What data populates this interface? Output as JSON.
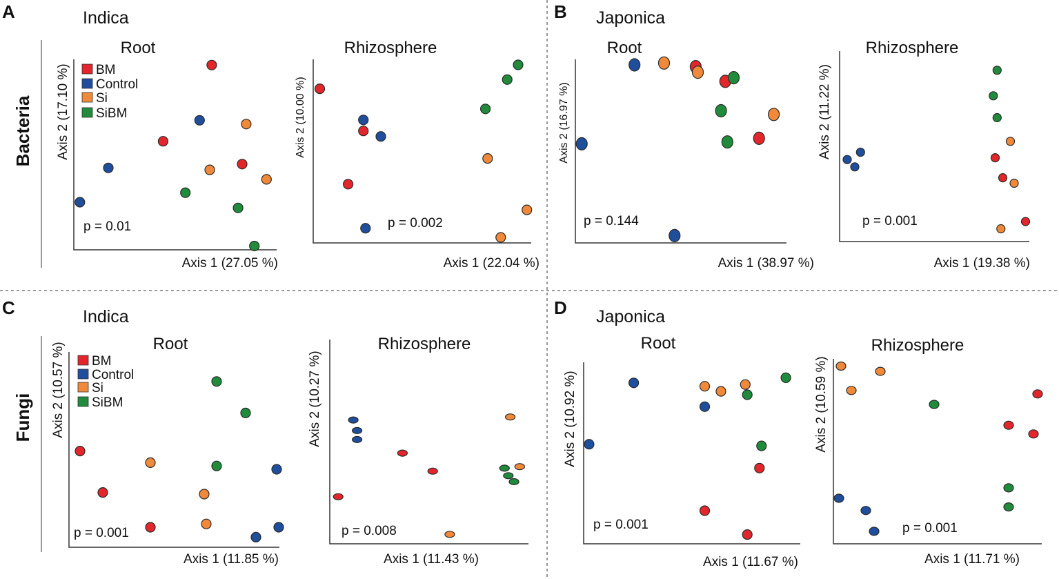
{
  "figure": {
    "row_labels": [
      "Bacteria",
      "Fungi"
    ],
    "colors": {
      "BM": "#e3262b",
      "Control": "#1f4e9c",
      "Si": "#f0893a",
      "SiBM": "#1f8b3b"
    }
  },
  "panels": [
    {
      "letter": "A",
      "group": "Indica"
    },
    {
      "letter": "B",
      "group": "Japonica"
    },
    {
      "letter": "C",
      "group": "Indica"
    },
    {
      "letter": "D",
      "group": "Japonica"
    }
  ],
  "chart_data": [
    {
      "type": "scatter",
      "panel": "A",
      "group": "Indica",
      "kingdom": "Bacteria",
      "title": "Root",
      "xlabel": "Axis 1 (27.05 %)",
      "ylabel": "Axis 2 (17.10 %)",
      "p_value": "p = 0.01",
      "xlim": [
        0,
        100
      ],
      "ylim": [
        0,
        100
      ],
      "legend": [
        "BM",
        "Control",
        "Si",
        "SiBM"
      ],
      "points": [
        {
          "group": "BM",
          "x": 68,
          "y": 97
        },
        {
          "group": "BM",
          "x": 44,
          "y": 57
        },
        {
          "group": "BM",
          "x": 83,
          "y": 45
        },
        {
          "group": "Control",
          "x": 62,
          "y": 68
        },
        {
          "group": "Control",
          "x": 17,
          "y": 43
        },
        {
          "group": "Control",
          "x": 3,
          "y": 25
        },
        {
          "group": "Si",
          "x": 85,
          "y": 66
        },
        {
          "group": "Si",
          "x": 67,
          "y": 42
        },
        {
          "group": "Si",
          "x": 95,
          "y": 37
        },
        {
          "group": "SiBM",
          "x": 55,
          "y": 30
        },
        {
          "group": "SiBM",
          "x": 81,
          "y": 22
        },
        {
          "group": "SiBM",
          "x": 89,
          "y": 2
        }
      ]
    },
    {
      "type": "scatter",
      "panel": "A",
      "group": "Indica",
      "kingdom": "Bacteria",
      "title": "Rhizosphere",
      "xlabel": "Axis 1 (22.04 %)",
      "ylabel": "Axis 2 (10.00 %)",
      "p_value": "p = 0.002",
      "xlim": [
        0,
        100
      ],
      "ylim": [
        0,
        100
      ],
      "points": [
        {
          "group": "BM",
          "x": 3,
          "y": 84
        },
        {
          "group": "BM",
          "x": 23,
          "y": 61
        },
        {
          "group": "BM",
          "x": 16,
          "y": 32
        },
        {
          "group": "Control",
          "x": 23,
          "y": 67
        },
        {
          "group": "Control",
          "x": 31,
          "y": 58
        },
        {
          "group": "Control",
          "x": 24,
          "y": 8
        },
        {
          "group": "Si",
          "x": 80,
          "y": 46
        },
        {
          "group": "Si",
          "x": 98,
          "y": 18
        },
        {
          "group": "Si",
          "x": 86,
          "y": 3
        },
        {
          "group": "SiBM",
          "x": 94,
          "y": 97
        },
        {
          "group": "SiBM",
          "x": 89,
          "y": 89
        },
        {
          "group": "SiBM",
          "x": 79,
          "y": 73
        }
      ]
    },
    {
      "type": "scatter",
      "panel": "B",
      "group": "Japonica",
      "kingdom": "Bacteria",
      "title": "Root",
      "xlabel": "Axis 1 (38.97 %)",
      "ylabel": "Axis 2 (16.97 %)",
      "p_value": "p = 0.144",
      "xlim": [
        0,
        100
      ],
      "ylim": [
        0,
        100
      ],
      "points": [
        {
          "group": "BM",
          "x": 57,
          "y": 96
        },
        {
          "group": "BM",
          "x": 71,
          "y": 88
        },
        {
          "group": "BM",
          "x": 87,
          "y": 57
        },
        {
          "group": "Control",
          "x": 28,
          "y": 97
        },
        {
          "group": "Control",
          "x": 3,
          "y": 54
        },
        {
          "group": "Control",
          "x": 47,
          "y": 4
        },
        {
          "group": "Si",
          "x": 42,
          "y": 98
        },
        {
          "group": "Si",
          "x": 58,
          "y": 93
        },
        {
          "group": "Si",
          "x": 94,
          "y": 70
        },
        {
          "group": "SiBM",
          "x": 75,
          "y": 90
        },
        {
          "group": "SiBM",
          "x": 69,
          "y": 72
        },
        {
          "group": "SiBM",
          "x": 72,
          "y": 55
        }
      ]
    },
    {
      "type": "scatter",
      "panel": "B",
      "group": "Japonica",
      "kingdom": "Bacteria",
      "title": "Rhizosphere",
      "xlabel": "Axis 1 (19.38 %)",
      "ylabel": "Axis 2 (11.22 %)",
      "p_value": "p = 0.001",
      "xlim": [
        0,
        100
      ],
      "ylim": [
        0,
        100
      ],
      "points": [
        {
          "group": "BM",
          "x": 82,
          "y": 46
        },
        {
          "group": "BM",
          "x": 86,
          "y": 35
        },
        {
          "group": "BM",
          "x": 98,
          "y": 11
        },
        {
          "group": "Control",
          "x": 4,
          "y": 45
        },
        {
          "group": "Control",
          "x": 8,
          "y": 41
        },
        {
          "group": "Control",
          "x": 11,
          "y": 49
        },
        {
          "group": "Si",
          "x": 90,
          "y": 55
        },
        {
          "group": "Si",
          "x": 92,
          "y": 32
        },
        {
          "group": "Si",
          "x": 85,
          "y": 7
        },
        {
          "group": "SiBM",
          "x": 83,
          "y": 94
        },
        {
          "group": "SiBM",
          "x": 81,
          "y": 80
        },
        {
          "group": "SiBM",
          "x": 83,
          "y": 68
        }
      ]
    },
    {
      "type": "scatter",
      "panel": "C",
      "group": "Indica",
      "kingdom": "Fungi",
      "title": "Root",
      "xlabel": "Axis 1 (11.85 %)",
      "ylabel": "Axis 2 (10.57 %)",
      "p_value": "p = 0.001",
      "xlim": [
        0,
        100
      ],
      "ylim": [
        0,
        100
      ],
      "legend": [
        "BM",
        "Control",
        "Si",
        "SiBM"
      ],
      "points": [
        {
          "group": "BM",
          "x": 3,
          "y": 56
        },
        {
          "group": "BM",
          "x": 14,
          "y": 31
        },
        {
          "group": "BM",
          "x": 37,
          "y": 10
        },
        {
          "group": "Control",
          "x": 98,
          "y": 45
        },
        {
          "group": "Control",
          "x": 99,
          "y": 10
        },
        {
          "group": "Control",
          "x": 88,
          "y": 4
        },
        {
          "group": "Si",
          "x": 37,
          "y": 49
        },
        {
          "group": "Si",
          "x": 63,
          "y": 30
        },
        {
          "group": "Si",
          "x": 64,
          "y": 12
        },
        {
          "group": "SiBM",
          "x": 69,
          "y": 98
        },
        {
          "group": "SiBM",
          "x": 83,
          "y": 79
        },
        {
          "group": "SiBM",
          "x": 69,
          "y": 47
        }
      ]
    },
    {
      "type": "scatter",
      "panel": "C",
      "group": "Indica",
      "kingdom": "Fungi",
      "title": "Rhizosphere",
      "xlabel": "Axis 1 (11.43 %)",
      "ylabel": "Axis 2 (10.27 %)",
      "p_value": "p = 0.008",
      "xlim": [
        0,
        100
      ],
      "ylim": [
        0,
        100
      ],
      "points": [
        {
          "group": "BM",
          "x": 37,
          "y": 58
        },
        {
          "group": "BM",
          "x": 53,
          "y": 46
        },
        {
          "group": "BM",
          "x": 3,
          "y": 29
        },
        {
          "group": "Control",
          "x": 11,
          "y": 80
        },
        {
          "group": "Control",
          "x": 13,
          "y": 73
        },
        {
          "group": "Control",
          "x": 13,
          "y": 67
        },
        {
          "group": "Si",
          "x": 94,
          "y": 82
        },
        {
          "group": "Si",
          "x": 99,
          "y": 49
        },
        {
          "group": "Si",
          "x": 62,
          "y": 4
        },
        {
          "group": "SiBM",
          "x": 91,
          "y": 48
        },
        {
          "group": "SiBM",
          "x": 93,
          "y": 43
        },
        {
          "group": "SiBM",
          "x": 96,
          "y": 39
        }
      ]
    },
    {
      "type": "scatter",
      "panel": "D",
      "group": "Japonica",
      "kingdom": "Fungi",
      "title": "Root",
      "xlabel": "Axis 1 (11.67 %)",
      "ylabel": "Axis 2 (10.92 %)",
      "p_value": "p = 0.001",
      "xlim": [
        0,
        100
      ],
      "ylim": [
        0,
        100
      ],
      "points": [
        {
          "group": "BM",
          "x": 86,
          "y": 42
        },
        {
          "group": "BM",
          "x": 59,
          "y": 17
        },
        {
          "group": "BM",
          "x": 80,
          "y": 3
        },
        {
          "group": "Control",
          "x": 24,
          "y": 92
        },
        {
          "group": "Control",
          "x": 59,
          "y": 78
        },
        {
          "group": "Control",
          "x": 2,
          "y": 56
        },
        {
          "group": "Si",
          "x": 59,
          "y": 90
        },
        {
          "group": "Si",
          "x": 67,
          "y": 87
        },
        {
          "group": "Si",
          "x": 79,
          "y": 91
        },
        {
          "group": "SiBM",
          "x": 99,
          "y": 95
        },
        {
          "group": "SiBM",
          "x": 80,
          "y": 85
        },
        {
          "group": "SiBM",
          "x": 87,
          "y": 55
        }
      ]
    },
    {
      "type": "scatter",
      "panel": "D",
      "group": "Japonica",
      "kingdom": "Fungi",
      "title": "Rhizosphere",
      "xlabel": "Axis 1 (11.71 %)",
      "ylabel": "Axis 2 (10.59 %)",
      "p_value": "p = 0.001",
      "xlim": [
        0,
        100
      ],
      "ylim": [
        0,
        100
      ],
      "points": [
        {
          "group": "BM",
          "x": 98,
          "y": 83
        },
        {
          "group": "BM",
          "x": 84,
          "y": 65
        },
        {
          "group": "BM",
          "x": 96,
          "y": 60
        },
        {
          "group": "Control",
          "x": 2,
          "y": 23
        },
        {
          "group": "Control",
          "x": 15,
          "y": 16
        },
        {
          "group": "Control",
          "x": 19,
          "y": 4
        },
        {
          "group": "Si",
          "x": 3,
          "y": 99
        },
        {
          "group": "Si",
          "x": 8,
          "y": 85
        },
        {
          "group": "Si",
          "x": 22,
          "y": 96
        },
        {
          "group": "SiBM",
          "x": 48,
          "y": 77
        },
        {
          "group": "SiBM",
          "x": 84,
          "y": 29
        },
        {
          "group": "SiBM",
          "x": 84,
          "y": 18
        }
      ]
    }
  ]
}
